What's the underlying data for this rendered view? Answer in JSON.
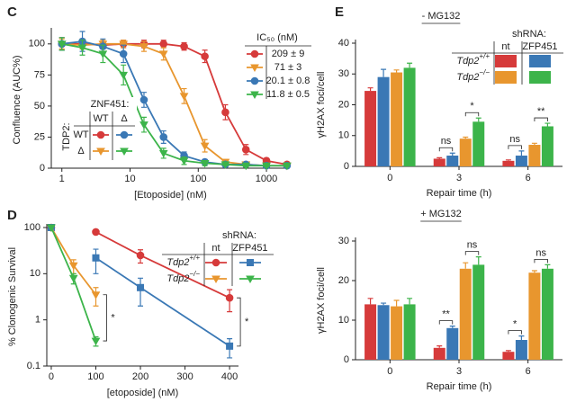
{
  "chart_data": [
    {
      "panel": "C",
      "type": "line",
      "xscale": "log",
      "x": [
        1,
        2,
        4,
        8,
        16,
        31,
        62,
        125,
        250,
        500,
        1000,
        2000
      ],
      "xlim": [
        0.7,
        2200
      ],
      "xticks": [
        1,
        10,
        100,
        1000
      ],
      "ylim": [
        0,
        110
      ],
      "yticks": [
        0,
        25,
        50,
        75,
        100
      ],
      "xlabel": "[Etoposide] (nM)",
      "ylabel": "Confluence (AUC%)",
      "legend_title": "IC₅₀ (nM)",
      "series": [
        {
          "name": "209 ± 9",
          "color": "#d63a3a",
          "marker": "circle",
          "values": [
            100,
            100,
            99,
            100,
            100,
            100,
            98,
            90,
            45,
            15,
            6,
            3
          ],
          "errors": [
            5,
            4,
            3,
            3,
            3,
            3,
            3,
            5,
            6,
            4,
            2,
            2
          ]
        },
        {
          "name": "71 ± 3",
          "color": "#e8962e",
          "marker": "triangle-down",
          "values": [
            100,
            99,
            100,
            100,
            98,
            92,
            58,
            18,
            5,
            3,
            2,
            2
          ],
          "errors": [
            4,
            3,
            3,
            3,
            4,
            5,
            6,
            5,
            2,
            2,
            1,
            1
          ]
        },
        {
          "name": "20.1 ± 0.8",
          "color": "#3a78b5",
          "marker": "circle",
          "values": [
            100,
            102,
            98,
            92,
            55,
            25,
            10,
            5,
            3,
            3,
            2,
            2
          ],
          "errors": [
            5,
            8,
            6,
            7,
            6,
            5,
            3,
            2,
            2,
            1,
            1,
            1
          ]
        },
        {
          "name": "11.8 ± 0.5",
          "color": "#3cb44a",
          "marker": "triangle-down",
          "values": [
            100,
            97,
            92,
            75,
            35,
            12,
            6,
            4,
            3,
            2,
            2,
            2
          ],
          "errors": [
            5,
            6,
            7,
            8,
            6,
            4,
            3,
            2,
            1,
            1,
            1,
            1
          ]
        }
      ],
      "inset": {
        "col_title": "ZNF451:",
        "cols": [
          "WT",
          "Δ"
        ],
        "row_title": "TDP2:",
        "rows": [
          "WT",
          "Δ"
        ]
      }
    },
    {
      "panel": "D",
      "type": "line",
      "yscale": "log",
      "x": [
        0,
        50,
        100,
        200,
        400
      ],
      "xlim": [
        -10,
        420
      ],
      "xticks": [
        0,
        100,
        200,
        300,
        400
      ],
      "ylim": [
        0.1,
        100
      ],
      "yticks": [
        0.1,
        1,
        10,
        100
      ],
      "xlabel": "[etoposide] (nM)",
      "ylabel": "% Clonogenic Survival",
      "legend": {
        "title": "shRNA:",
        "cols": [
          "nt",
          "ZFP451"
        ],
        "rows": [
          {
            "gene": "Tdp2",
            "sup": "+/+"
          },
          {
            "gene": "Tdp2",
            "sup": "−/−"
          }
        ]
      },
      "series": [
        {
          "color": "#d63a3a",
          "marker": "circle",
          "values": [
            100,
            null,
            80,
            25,
            3
          ],
          "errors": [
            null,
            null,
            8,
            8,
            1.5
          ]
        },
        {
          "color": "#3a78b5",
          "marker": "square",
          "values": [
            100,
            null,
            22,
            5,
            0.27
          ],
          "errors": [
            null,
            null,
            12,
            3,
            0.12
          ]
        },
        {
          "color": "#e8962e",
          "marker": "triangle-down",
          "values": [
            100,
            15,
            3.5,
            null,
            null
          ],
          "errors": [
            null,
            5,
            1.5,
            null,
            null
          ]
        },
        {
          "color": "#3cb44a",
          "marker": "triangle-down",
          "values": [
            100,
            8,
            0.35,
            null,
            null
          ],
          "errors": [
            null,
            2,
            0.08,
            null,
            null
          ]
        }
      ],
      "annotations": [
        "*",
        "*"
      ]
    },
    {
      "panel": "E",
      "type": "bar",
      "title": "- MG132",
      "categories": [
        "0",
        "3",
        "6"
      ],
      "ylim": [
        0,
        40
      ],
      "yticks": [
        0,
        10,
        20,
        30,
        40
      ],
      "xlabel": "Repair time (h)",
      "ylabel": "γH2AX foci/cell",
      "legend": {
        "title": "shRNA:",
        "cols": [
          "nt",
          "ZFP451"
        ],
        "rows": [
          {
            "gene": "Tdp2",
            "sup": "+/+"
          },
          {
            "gene": "Tdp2",
            "sup": "−/−"
          }
        ]
      },
      "series": [
        {
          "color": "#d63a3a",
          "values": [
            24.5,
            2.5,
            1.8
          ],
          "errors": [
            1,
            0.3,
            0.3
          ]
        },
        {
          "color": "#3a78b5",
          "values": [
            29,
            3.5,
            3.5
          ],
          "errors": [
            2.5,
            0.8,
            1.5
          ]
        },
        {
          "color": "#e8962e",
          "values": [
            30.5,
            9,
            7
          ],
          "errors": [
            0.8,
            0.5,
            0.5
          ]
        },
        {
          "color": "#3cb44a",
          "values": [
            32,
            14.5,
            13
          ],
          "errors": [
            1.5,
            1.2,
            1
          ]
        }
      ],
      "annotations": [
        [],
        [
          "ns",
          "*"
        ],
        [
          "ns",
          "**"
        ]
      ]
    },
    {
      "type": "bar",
      "title": "+ MG132",
      "categories": [
        "0",
        "3",
        "6"
      ],
      "ylim": [
        0,
        30
      ],
      "yticks": [
        0,
        10,
        20,
        30
      ],
      "xlabel": "Repair time (h)",
      "ylabel": "γH2AX foci/cell",
      "series": [
        {
          "color": "#d63a3a",
          "values": [
            14,
            3,
            2
          ],
          "errors": [
            1.5,
            0.5,
            0.3
          ]
        },
        {
          "color": "#3a78b5",
          "values": [
            13.8,
            8,
            5
          ],
          "errors": [
            0.5,
            0.5,
            1
          ]
        },
        {
          "color": "#e8962e",
          "values": [
            13.5,
            23,
            22
          ],
          "errors": [
            1.5,
            1.5,
            0.5
          ]
        },
        {
          "color": "#3cb44a",
          "values": [
            14,
            24,
            23
          ],
          "errors": [
            1.5,
            2,
            1
          ]
        }
      ],
      "annotations": [
        [],
        [
          "**",
          "ns"
        ],
        [
          "*",
          "ns"
        ]
      ]
    }
  ]
}
